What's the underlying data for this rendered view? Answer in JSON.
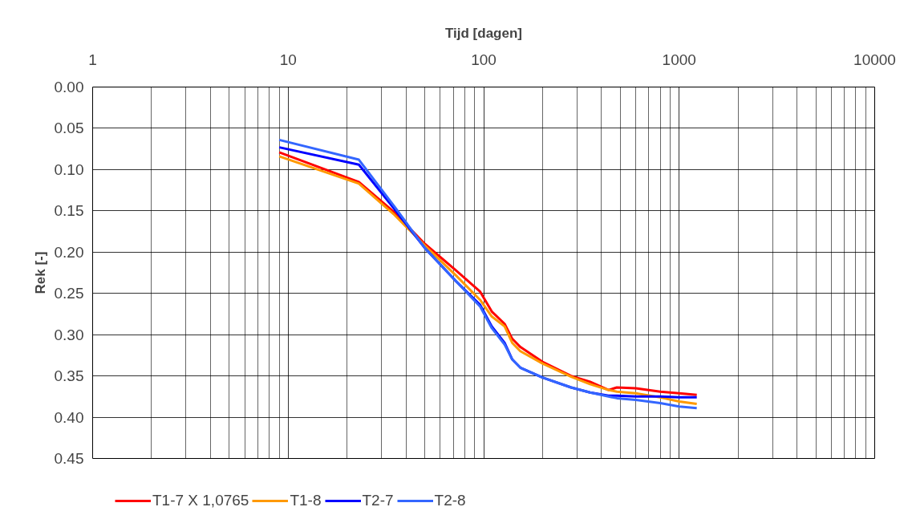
{
  "chart_data": {
    "type": "line",
    "xlabel": "Tijd [dagen]",
    "ylabel": "Rek [-]",
    "log": "x",
    "x": [
      9,
      23,
      35,
      50,
      72,
      96,
      110,
      128,
      140,
      154,
      200,
      280,
      350,
      435,
      480,
      600,
      800,
      1000,
      1230
    ],
    "series": [
      {
        "name": "T1-7 X 1,0765",
        "color": "#ff0000",
        "values": [
          0.079,
          0.115,
          0.152,
          0.19,
          0.222,
          0.248,
          0.272,
          0.287,
          0.305,
          0.315,
          0.333,
          0.35,
          0.357,
          0.367,
          0.364,
          0.365,
          0.369,
          0.371,
          0.373
        ]
      },
      {
        "name": "T1-8",
        "color": "#ff9900",
        "values": [
          0.084,
          0.117,
          0.155,
          0.192,
          0.228,
          0.258,
          0.278,
          0.29,
          0.31,
          0.32,
          0.335,
          0.351,
          0.36,
          0.367,
          0.369,
          0.371,
          0.376,
          0.381,
          0.384
        ]
      },
      {
        "name": "T2-7",
        "color": "#0000ff",
        "values": [
          0.073,
          0.094,
          0.148,
          0.195,
          0.235,
          0.264,
          0.29,
          0.31,
          0.33,
          0.34,
          0.352,
          0.364,
          0.37,
          0.374,
          0.374,
          0.375,
          0.375,
          0.376,
          0.376
        ]
      },
      {
        "name": "T2-8",
        "color": "#3366ff",
        "values": [
          0.064,
          0.088,
          0.145,
          0.195,
          0.235,
          0.266,
          0.292,
          0.312,
          0.33,
          0.34,
          0.352,
          0.364,
          0.37,
          0.375,
          0.377,
          0.379,
          0.383,
          0.387,
          0.389
        ]
      }
    ],
    "xlim": [
      1,
      10000
    ],
    "xticks": [
      1,
      10,
      100,
      1000,
      10000
    ],
    "ylim": [
      0.45,
      0.0
    ],
    "yticks": [
      {
        "value": 0.0,
        "label": "0.00"
      },
      {
        "value": 0.05,
        "label": "0.05"
      },
      {
        "value": 0.1,
        "label": "0.10"
      },
      {
        "value": 0.15,
        "label": "0.15"
      },
      {
        "value": 0.2,
        "label": "0.20"
      },
      {
        "value": 0.25,
        "label": "0.25"
      },
      {
        "value": 0.3,
        "label": "0.30"
      },
      {
        "value": 0.35,
        "label": "0.35"
      },
      {
        "value": 0.4,
        "label": "0.40"
      },
      {
        "value": 0.45,
        "label": "0.45"
      }
    ],
    "grid": true,
    "legend": "bottom left",
    "line_style": "solid",
    "marker": "none"
  }
}
